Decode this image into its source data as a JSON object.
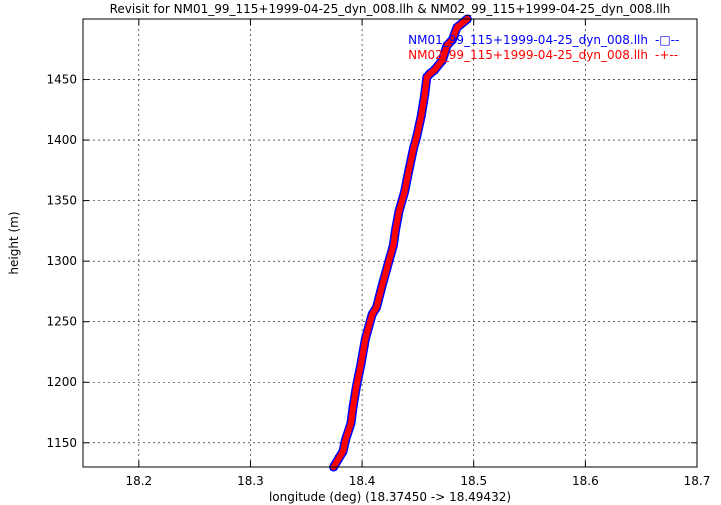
{
  "chart_data": {
    "type": "line",
    "title": "Revisit for NM01_99_115+1999-04-25_dyn_008.llh & NM02_99_115+1999-04-25_dyn_008.llh",
    "xlabel": "longitude (deg) (18.37450 -> 18.49432)",
    "ylabel": "height (m)",
    "xlim": [
      18.15,
      18.7
    ],
    "ylim": [
      1130,
      1500
    ],
    "xticks": [
      "18.2",
      "18.3",
      "18.4",
      "18.5",
      "18.6",
      "18.7"
    ],
    "yticks": [
      "1150",
      "1200",
      "1250",
      "1300",
      "1350",
      "1400",
      "1450"
    ],
    "grid": true,
    "legend_position": "top-right",
    "series": [
      {
        "name": "NM01_99_115+1999-04-25_dyn_008.llh",
        "legend_marker": "-□--",
        "color": "#0000ff",
        "marker": "square",
        "x": [
          18.3745,
          18.379,
          18.383,
          18.385,
          18.39,
          18.392,
          18.395,
          18.399,
          18.403,
          18.409,
          18.413,
          18.418,
          18.424,
          18.428,
          18.43,
          18.433,
          18.438,
          18.441,
          18.446,
          18.449,
          18.453,
          18.456,
          18.458,
          18.461,
          18.465,
          18.472,
          18.476,
          18.481,
          18.485,
          18.4943
        ],
        "y": [
          1130,
          1137,
          1143,
          1152,
          1166,
          1180,
          1197,
          1215,
          1236,
          1256,
          1262,
          1280,
          1300,
          1313,
          1326,
          1341,
          1357,
          1371,
          1393,
          1403,
          1420,
          1437,
          1452,
          1455,
          1458,
          1466,
          1478,
          1483,
          1493,
          1500
        ]
      },
      {
        "name": "NM02_99_115+1999-04-25_dyn_008.llh",
        "legend_marker": "-+--",
        "color": "#ff0000",
        "marker": "plus",
        "x": [
          18.3745,
          18.379,
          18.383,
          18.385,
          18.39,
          18.392,
          18.395,
          18.399,
          18.403,
          18.409,
          18.413,
          18.418,
          18.424,
          18.428,
          18.43,
          18.433,
          18.438,
          18.441,
          18.446,
          18.449,
          18.453,
          18.456,
          18.458,
          18.461,
          18.465,
          18.472,
          18.476,
          18.481,
          18.485,
          18.4943
        ],
        "y": [
          1130,
          1137,
          1143,
          1152,
          1166,
          1180,
          1197,
          1215,
          1236,
          1256,
          1262,
          1280,
          1300,
          1313,
          1326,
          1341,
          1357,
          1371,
          1393,
          1403,
          1420,
          1437,
          1452,
          1455,
          1458,
          1466,
          1478,
          1483,
          1493,
          1500
        ]
      }
    ]
  }
}
